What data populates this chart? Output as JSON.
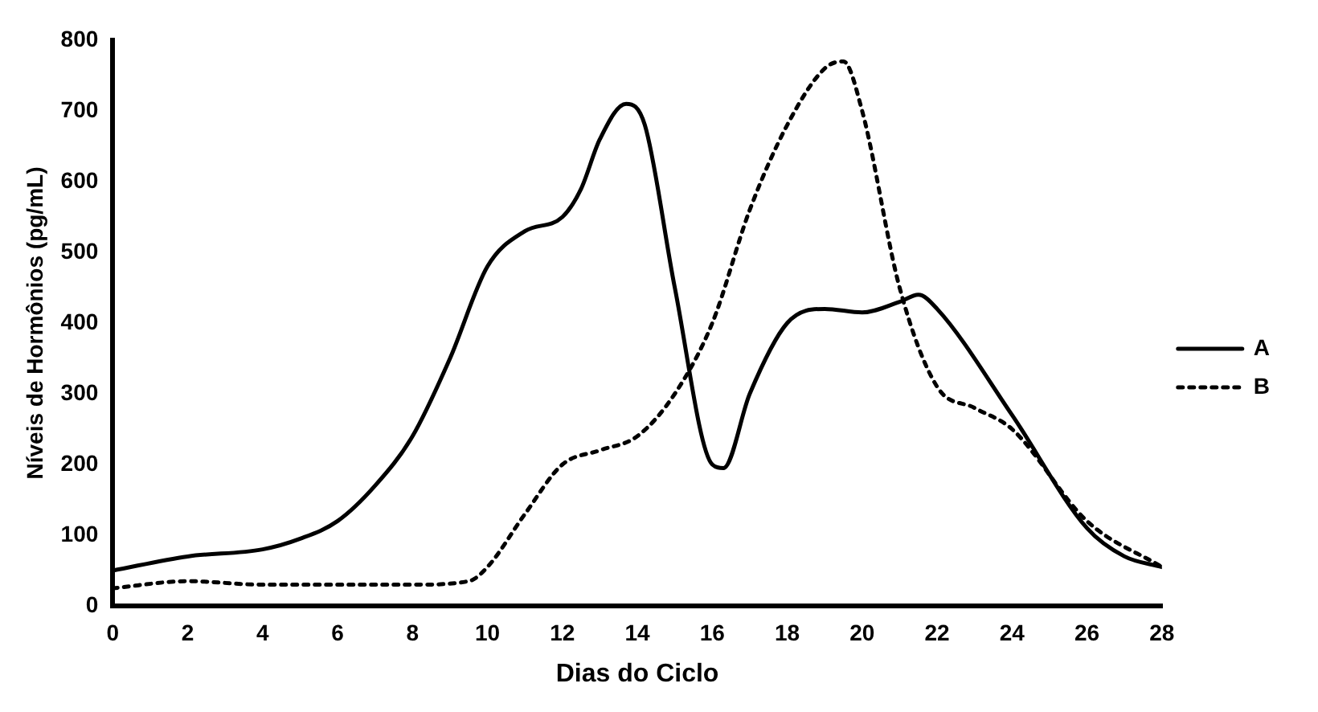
{
  "chart_data": {
    "type": "line",
    "xlabel": "Dias do Ciclo",
    "ylabel": "Níveis de Hormônios (pg/mL)",
    "xlim": [
      0,
      28
    ],
    "xticks": [
      0,
      2,
      4,
      6,
      8,
      10,
      12,
      14,
      16,
      18,
      20,
      22,
      24,
      26,
      28
    ],
    "ylim": [
      0,
      800
    ],
    "yticks": [
      0,
      100,
      200,
      300,
      400,
      500,
      600,
      700,
      800
    ],
    "grid": false,
    "legend": "right",
    "marker": "none",
    "series": [
      {
        "name": "A",
        "color": "#000000",
        "line_style": "solid",
        "x": [
          0,
          2,
          4,
          5,
          6,
          7,
          8,
          9,
          10,
          11,
          12,
          12.5,
          13,
          13.7,
          14.2,
          15,
          16,
          16.3,
          17,
          18,
          19,
          20,
          21,
          21.5,
          22,
          24,
          26,
          27,
          28
        ],
        "values": [
          50,
          70,
          80,
          95,
          120,
          170,
          240,
          350,
          480,
          530,
          550,
          590,
          660,
          710,
          680,
          450,
          200,
          195,
          300,
          400,
          420,
          415,
          430,
          440,
          420,
          270,
          110,
          70,
          55
        ]
      },
      {
        "name": "B",
        "color": "#000000",
        "line_style": "dotted",
        "x": [
          0,
          2,
          4,
          6,
          8,
          9.5,
          10,
          11,
          12,
          13,
          14,
          15,
          16,
          17,
          18,
          19,
          19.5,
          20,
          21,
          22,
          23,
          24,
          26,
          28
        ],
        "values": [
          25,
          35,
          30,
          30,
          30,
          35,
          55,
          130,
          200,
          220,
          240,
          300,
          400,
          560,
          680,
          760,
          770,
          700,
          450,
          310,
          280,
          250,
          120,
          55
        ]
      }
    ]
  }
}
